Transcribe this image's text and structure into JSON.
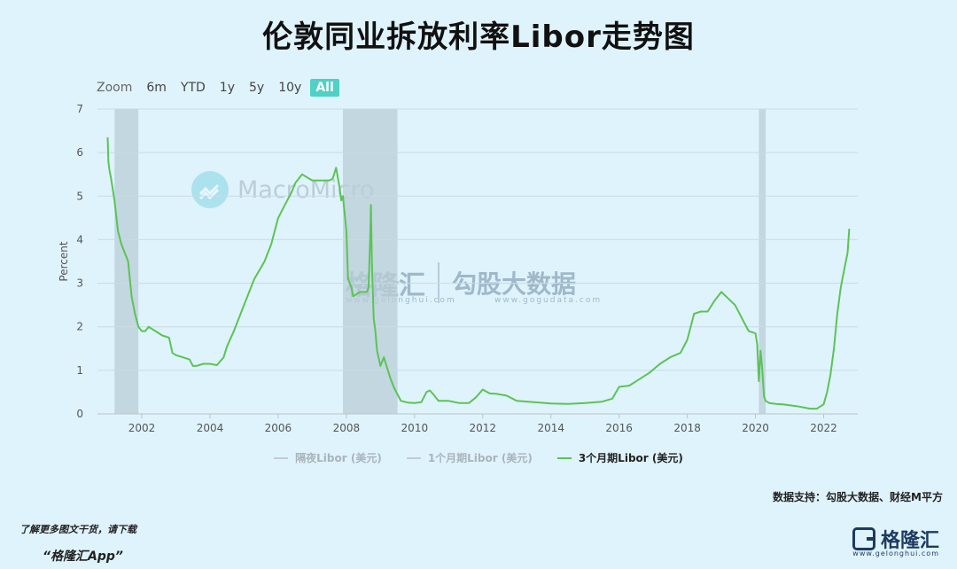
{
  "title": "伦敦同业拆放利率Libor走势图",
  "zoom": {
    "label": "Zoom",
    "buttons": [
      "6m",
      "YTD",
      "1y",
      "5y",
      "10y",
      "All"
    ],
    "active": "All",
    "active_color": "#4fd1c5"
  },
  "watermarks": {
    "macromicro": "MacroMicro",
    "gelonghui": "格隆汇",
    "gelonghui_url": "www.gelonghui.com",
    "gogudata": "勾股大数据",
    "gogudata_url": "www.gogudata.com"
  },
  "source_text": "数据支持：勾股大数据、财经M平方",
  "footer": {
    "line1": "了解更多图文干货，请下载",
    "line2": "“格隆汇App”",
    "logo_name": "格隆汇",
    "logo_url": "www.gelonghui.com"
  },
  "chart_data": {
    "type": "line",
    "title": "伦敦同业拆放利率Libor走势图",
    "xlabel": "",
    "ylabel": "Percent",
    "xlim": [
      2000.7,
      2023.0
    ],
    "ylim": [
      0,
      7
    ],
    "x_ticks": [
      2002,
      2004,
      2006,
      2008,
      2010,
      2012,
      2014,
      2016,
      2018,
      2020,
      2022
    ],
    "y_ticks": [
      0,
      1,
      2,
      3,
      4,
      5,
      6,
      7
    ],
    "grid": true,
    "legend_position": "bottom",
    "recession_bands": [
      [
        2001.2,
        2001.9
      ],
      [
        2007.9,
        2009.5
      ],
      [
        2020.1,
        2020.3
      ]
    ],
    "recession_color": "#b8cdd6",
    "series": [
      {
        "name": "隔夜Libor (美元)",
        "visible": false,
        "color": "#c4ccd1",
        "x": [],
        "y": []
      },
      {
        "name": "1个月期Libor (美元)",
        "visible": false,
        "color": "#c4ccd1",
        "x": [],
        "y": []
      },
      {
        "name": "3个月期Libor (美元)",
        "visible": true,
        "color": "#5cc356",
        "x": [
          2001.0,
          2001.02,
          2001.05,
          2001.1,
          2001.2,
          2001.3,
          2001.4,
          2001.5,
          2001.6,
          2001.7,
          2001.75,
          2001.8,
          2001.9,
          2002.0,
          2002.1,
          2002.2,
          2002.4,
          2002.6,
          2002.8,
          2002.9,
          2003.0,
          2003.2,
          2003.4,
          2003.5,
          2003.6,
          2003.8,
          2004.0,
          2004.2,
          2004.4,
          2004.5,
          2004.7,
          2005.0,
          2005.3,
          2005.6,
          2005.8,
          2006.0,
          2006.2,
          2006.4,
          2006.5,
          2006.7,
          2007.0,
          2007.3,
          2007.5,
          2007.6,
          2007.7,
          2007.8,
          2007.85,
          2007.9,
          2008.0,
          2008.05,
          2008.1,
          2008.15,
          2008.2,
          2008.3,
          2008.4,
          2008.5,
          2008.6,
          2008.65,
          2008.7,
          2008.72,
          2008.75,
          2008.8,
          2008.85,
          2008.9,
          2009.0,
          2009.05,
          2009.1,
          2009.2,
          2009.3,
          2009.4,
          2009.5,
          2009.6,
          2009.8,
          2010.0,
          2010.2,
          2010.35,
          2010.45,
          2010.55,
          2010.7,
          2011.0,
          2011.3,
          2011.6,
          2011.8,
          2012.0,
          2012.2,
          2012.4,
          2012.7,
          2013.0,
          2013.5,
          2014.0,
          2014.5,
          2015.0,
          2015.5,
          2015.8,
          2016.0,
          2016.3,
          2016.6,
          2016.9,
          2017.2,
          2017.5,
          2017.8,
          2018.0,
          2018.2,
          2018.4,
          2018.6,
          2018.8,
          2019.0,
          2019.2,
          2019.4,
          2019.6,
          2019.8,
          2020.0,
          2020.05,
          2020.1,
          2020.15,
          2020.2,
          2020.25,
          2020.3,
          2020.4,
          2020.6,
          2020.8,
          2021.0,
          2021.2,
          2021.4,
          2021.6,
          2021.8,
          2022.0,
          2022.1,
          2022.2,
          2022.3,
          2022.4,
          2022.5,
          2022.6,
          2022.7,
          2022.75
        ],
        "y": [
          6.35,
          5.8,
          5.6,
          5.4,
          4.9,
          4.2,
          3.9,
          3.7,
          3.5,
          2.7,
          2.5,
          2.3,
          2.0,
          1.9,
          1.9,
          2.0,
          1.9,
          1.8,
          1.75,
          1.4,
          1.35,
          1.3,
          1.25,
          1.1,
          1.1,
          1.15,
          1.15,
          1.12,
          1.3,
          1.55,
          1.9,
          2.5,
          3.1,
          3.5,
          3.9,
          4.5,
          4.8,
          5.1,
          5.3,
          5.5,
          5.36,
          5.36,
          5.36,
          5.4,
          5.65,
          5.2,
          4.9,
          5.0,
          4.2,
          3.1,
          3.0,
          2.9,
          2.7,
          2.75,
          2.8,
          2.8,
          2.8,
          2.9,
          4.05,
          4.8,
          3.5,
          2.2,
          1.9,
          1.45,
          1.1,
          1.2,
          1.3,
          1.05,
          0.8,
          0.6,
          0.45,
          0.3,
          0.26,
          0.25,
          0.27,
          0.5,
          0.54,
          0.45,
          0.3,
          0.3,
          0.25,
          0.25,
          0.38,
          0.56,
          0.47,
          0.46,
          0.42,
          0.3,
          0.27,
          0.24,
          0.23,
          0.25,
          0.28,
          0.35,
          0.62,
          0.65,
          0.8,
          0.95,
          1.15,
          1.3,
          1.4,
          1.7,
          2.3,
          2.35,
          2.35,
          2.6,
          2.8,
          2.65,
          2.5,
          2.2,
          1.9,
          1.85,
          1.6,
          0.75,
          1.45,
          1.0,
          0.4,
          0.3,
          0.25,
          0.23,
          0.22,
          0.2,
          0.18,
          0.15,
          0.12,
          0.12,
          0.22,
          0.5,
          0.9,
          1.5,
          2.3,
          2.9,
          3.3,
          3.7,
          4.25
        ]
      }
    ]
  }
}
